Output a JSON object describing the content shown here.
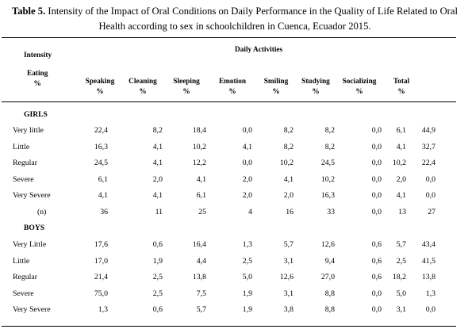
{
  "caption": {
    "label": "Table 5.",
    "text": "Intensity of the Impact of Oral Conditions on Daily Performance in the Quality of Life Related to Oral Health according to sex in schoolchildren in Cuenca, Ecuador 2015."
  },
  "header": {
    "intensity": "Intensity",
    "eating": "Eating",
    "eating_unit": "%",
    "daily_activities": "Daily Activities",
    "columns": [
      {
        "name": "Speaking",
        "unit": "%"
      },
      {
        "name": "Cleaning",
        "unit": "%"
      },
      {
        "name": "Sleeping",
        "unit": "%"
      },
      {
        "name": "Emotion",
        "unit": "%"
      },
      {
        "name": "Smiling",
        "unit": "%"
      },
      {
        "name": "Studying",
        "unit": "%"
      },
      {
        "name": "Socializing",
        "unit": "%"
      },
      {
        "name": "Total",
        "unit": "%"
      }
    ]
  },
  "girls": {
    "title": "GIRLS",
    "rows": [
      {
        "label": "Very little",
        "values": [
          "22,4",
          "8,2",
          "18,4",
          "0,0",
          "8,2",
          "8,2",
          "0,0",
          "6,1",
          "44,9"
        ]
      },
      {
        "label": "Little",
        "values": [
          "16,3",
          "4,1",
          "10,2",
          "4,1",
          "8,2",
          "8,2",
          "0,0",
          "4,1",
          "32,7"
        ]
      },
      {
        "label": "Regular",
        "values": [
          "24,5",
          "4,1",
          "12,2",
          "0,0",
          "10,2",
          "24,5",
          "0,0",
          "10,2",
          "22,4"
        ]
      },
      {
        "label": "Severe",
        "values": [
          "6,1",
          "2,0",
          "4,1",
          "2,0",
          "4,1",
          "10,2",
          "0,0",
          "2,0",
          "0,0"
        ]
      },
      {
        "label": "Very Severe",
        "values": [
          "4,1",
          "4,1",
          "6,1",
          "2,0",
          "2,0",
          "16,3",
          "0,0",
          "4,1",
          "0,0"
        ]
      },
      {
        "label": "(n)",
        "values": [
          "36",
          "11",
          "25",
          "4",
          "16",
          "33",
          "0,0",
          "13",
          "27"
        ]
      }
    ]
  },
  "boys": {
    "title": "BOYS",
    "rows": [
      {
        "label": "Very Little",
        "values": [
          "17,6",
          "0,6",
          "16,4",
          "1,3",
          "5,7",
          "12,6",
          "0,6",
          "5,7",
          "43,4"
        ]
      },
      {
        "label": "Little",
        "values": [
          "17,0",
          "1,9",
          "4,4",
          "2,5",
          "3,1",
          "9,4",
          "0,6",
          "2,5",
          "41,5"
        ]
      },
      {
        "label": "Regular",
        "values": [
          "21,4",
          "2,5",
          "13,8",
          "5,0",
          "12,6",
          "27,0",
          "0,6",
          "18,2",
          "13,8"
        ]
      },
      {
        "label": "Severe",
        "values": [
          "75,0",
          "2,5",
          "7,5",
          "1,9",
          "3,1",
          "8,8",
          "0,0",
          "5,0",
          "1,3"
        ]
      },
      {
        "label": "Very Severe",
        "values": [
          "1,3",
          "0,6",
          "5,7",
          "1,9",
          "3,8",
          "8,8",
          "0,0",
          "3,1",
          "0,0"
        ]
      }
    ]
  }
}
